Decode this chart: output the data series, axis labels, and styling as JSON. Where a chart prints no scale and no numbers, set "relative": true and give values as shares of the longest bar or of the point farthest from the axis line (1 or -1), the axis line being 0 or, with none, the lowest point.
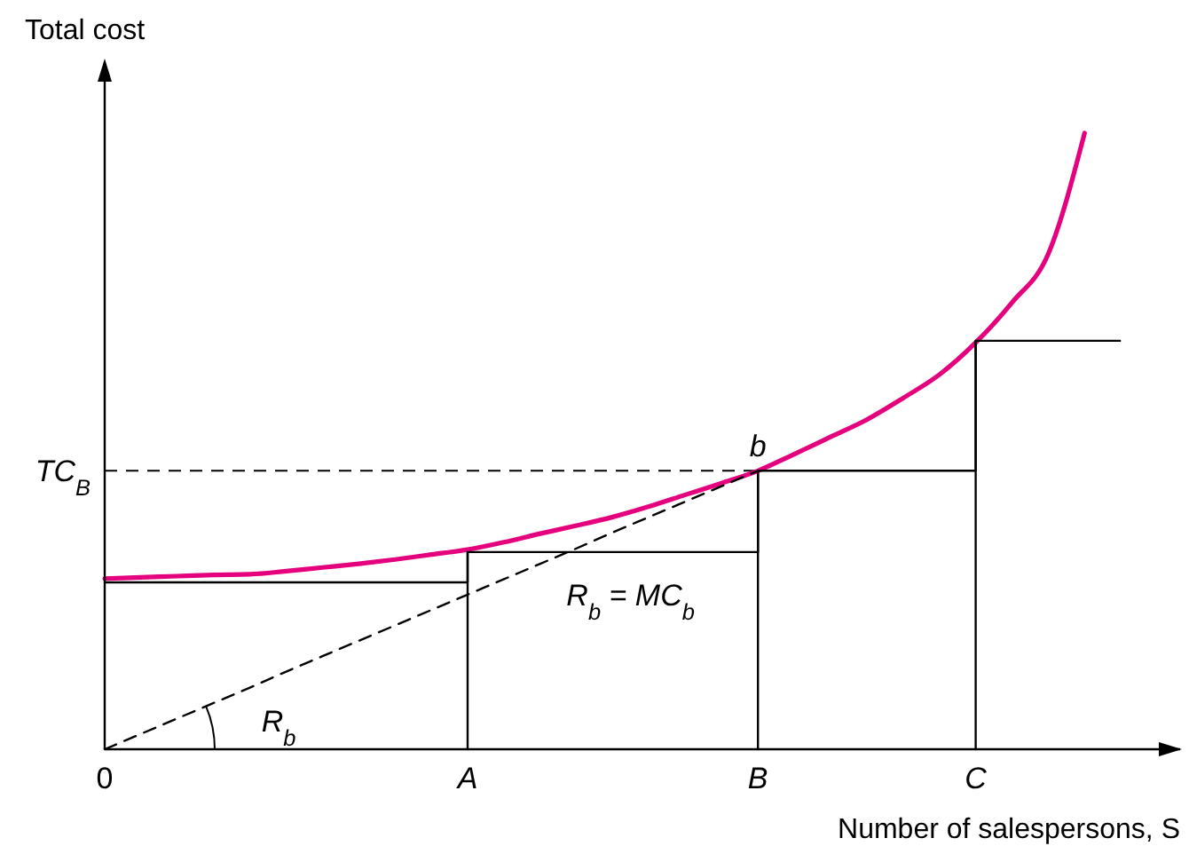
{
  "chart_data": {
    "type": "line",
    "relative": true,
    "ylabel": "Total cost",
    "xlabel": "Number of salespersons, S",
    "categories": [
      "0",
      null,
      null,
      null,
      null,
      null,
      null,
      null,
      null,
      null,
      "A",
      null,
      null,
      null,
      null,
      null,
      null,
      null,
      "B",
      null,
      null,
      null,
      null,
      null,
      "C",
      null,
      null,
      null,
      null,
      null
    ],
    "series": [
      {
        "color": "#e5007d",
        "values": [
          0.277,
          0.279,
          0.281,
          0.283,
          0.284,
          0.289,
          0.295,
          0.301,
          0.308,
          0.316,
          0.324,
          0.336,
          0.35,
          0.363,
          0.377,
          0.394,
          0.413,
          0.432,
          0.452,
          0.479,
          0.507,
          0.535,
          0.57,
          0.608,
          0.66,
          0.725,
          0.804,
          1.0,
          null,
          null
        ]
      },
      {
        "type": "step",
        "color": "#000000",
        "values": [
          0.271,
          0.271,
          0.271,
          0.271,
          0.271,
          0.271,
          0.271,
          0.271,
          0.271,
          0.271,
          0.32,
          0.32,
          0.32,
          0.32,
          0.32,
          0.32,
          0.32,
          0.32,
          0.452,
          0.452,
          0.452,
          0.452,
          0.452,
          0.452,
          0.663,
          0.663,
          0.663,
          0.663,
          0.663,
          null
        ]
      },
      {
        "type": "line",
        "color": "#000000",
        "x": [
          "A",
          "A"
        ],
        "values": [
          0,
          0.32
        ]
      },
      {
        "type": "line",
        "color": "#000000",
        "x": [
          "B",
          "B"
        ],
        "values": [
          0,
          0.452
        ]
      },
      {
        "type": "line",
        "color": "#000000",
        "x": [
          "C",
          "C"
        ],
        "values": [
          0,
          0.663
        ]
      },
      {
        "color": "#000000",
        "line_style": "dashed",
        "values": [
          0,
          0.025,
          0.05,
          0.075,
          0.1,
          0.126,
          0.151,
          0.176,
          0.201,
          0.226,
          0.251,
          0.276,
          0.301,
          0.326,
          0.352,
          0.377,
          0.402,
          0.427,
          0.452,
          null,
          null,
          null,
          null,
          null,
          null,
          null,
          null,
          null,
          null,
          null
        ]
      }
    ],
    "ref_lines": [
      {
        "axis": "y",
        "value": 0.452,
        "label": "TC$_{B}$",
        "line_style": "dashed",
        "color": "#000000"
      }
    ],
    "annotations": [
      {
        "text": "b",
        "x": "B",
        "y": 0.452
      },
      "R$_{b}$ = MC$_{b}$",
      "R$_{b}$"
    ]
  }
}
